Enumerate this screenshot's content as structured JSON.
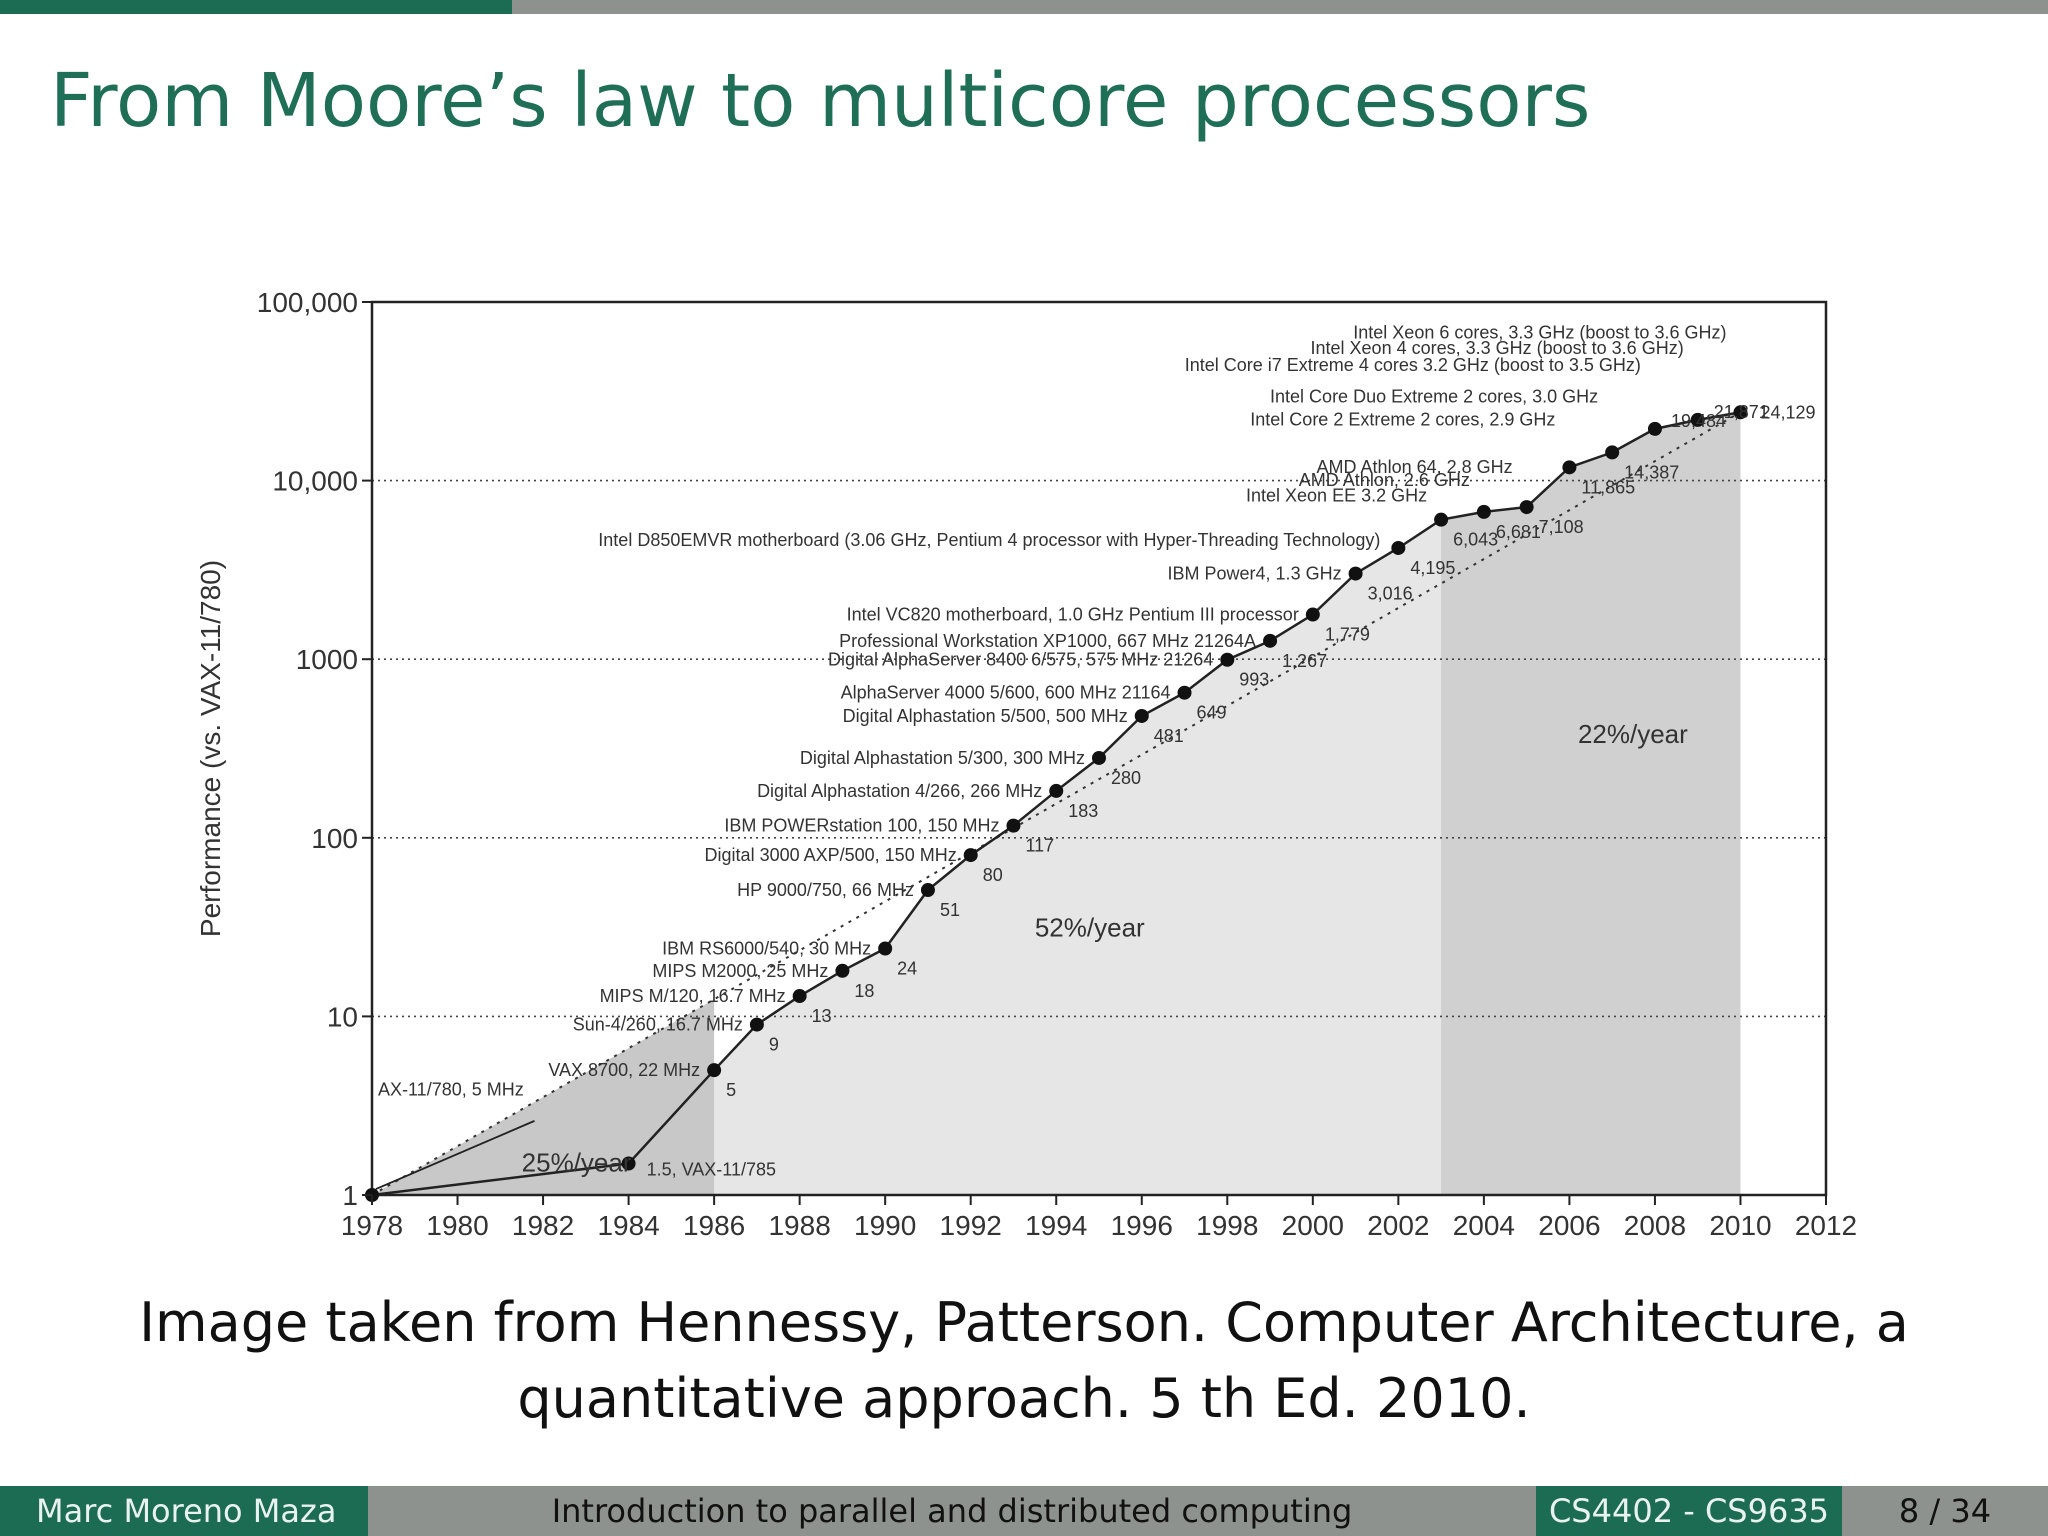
{
  "slide": {
    "title": "From Moore’s law to multicore processors",
    "caption_line1": "Image taken from Hennessy, Patterson. Computer Architecture, a",
    "caption_line2": "quantitative approach. 5 th Ed. 2010."
  },
  "footer": {
    "author": "Marc Moreno Maza",
    "course": "Introduction to parallel and distributed computing",
    "code": "CS4402 - CS9635",
    "page": "8 / 34"
  },
  "colors": {
    "accent": "#1c6b53",
    "footer_gray": "#8e928e",
    "title_green": "#1e6f55"
  },
  "chart_data": {
    "type": "line",
    "ylabel": "Performance (vs. VAX-11/780)",
    "xlabel": "",
    "y_scale": "log",
    "xlim": [
      1978,
      2012
    ],
    "ylim": [
      1,
      100000
    ],
    "x_ticks": [
      "1978",
      "1980",
      "1982",
      "1984",
      "1986",
      "1988",
      "1990",
      "1992",
      "1994",
      "1996",
      "1998",
      "2000",
      "2002",
      "2004",
      "2006",
      "2008",
      "2010",
      "2012"
    ],
    "y_ticks": [
      {
        "value": 1,
        "label": "1"
      },
      {
        "value": 10,
        "label": "10"
      },
      {
        "value": 100,
        "label": "100"
      },
      {
        "value": 1000,
        "label": "1000"
      },
      {
        "value": 10000,
        "label": "10,000"
      },
      {
        "value": 100000,
        "label": "100,000"
      }
    ],
    "grid": "horizontal dotted",
    "points": [
      {
        "year": 1978,
        "value": 1,
        "value_label": "1",
        "name": "AX-11/780, 5 MHz"
      },
      {
        "year": 1984,
        "value": 1.5,
        "value_label": "1.5, VAX-11/785",
        "name": ""
      },
      {
        "year": 1986,
        "value": 5,
        "value_label": "5",
        "name": "VAX 8700, 22 MHz"
      },
      {
        "year": 1987,
        "value": 9,
        "value_label": "9",
        "name": "Sun-4/260, 16.7 MHz"
      },
      {
        "year": 1988,
        "value": 13,
        "value_label": "13",
        "name": "MIPS M/120, 16.7 MHz"
      },
      {
        "year": 1989,
        "value": 18,
        "value_label": "18",
        "name": "MIPS M2000, 25 MHz"
      },
      {
        "year": 1990,
        "value": 24,
        "value_label": "24",
        "name": "IBM RS6000/540, 30 MHz"
      },
      {
        "year": 1991,
        "value": 51,
        "value_label": "51",
        "name": "HP 9000/750, 66 MHz"
      },
      {
        "year": 1992,
        "value": 80,
        "value_label": "80",
        "name": "Digital 3000 AXP/500, 150 MHz"
      },
      {
        "year": 1993,
        "value": 117,
        "value_label": "117",
        "name": "IBM POWERstation 100, 150 MHz"
      },
      {
        "year": 1994,
        "value": 183,
        "value_label": "183",
        "name": "Digital Alphastation 4/266, 266 MHz"
      },
      {
        "year": 1995,
        "value": 280,
        "value_label": "280",
        "name": "Digital Alphastation 5/300, 300 MHz"
      },
      {
        "year": 1996,
        "value": 481,
        "value_label": "481",
        "name": "Digital Alphastation 5/500, 500 MHz"
      },
      {
        "year": 1997,
        "value": 649,
        "value_label": "649",
        "name": "AlphaServer 4000 5/600, 600 MHz 21164"
      },
      {
        "year": 1998,
        "value": 993,
        "value_label": "993",
        "name": "Digital AlphaServer 8400 6/575, 575 MHz 21264"
      },
      {
        "year": 1999,
        "value": 1267,
        "value_label": "1,267",
        "name": "Professional Workstation XP1000, 667 MHz 21264A"
      },
      {
        "year": 2000,
        "value": 1779,
        "value_label": "1,779",
        "name": "Intel VC820 motherboard, 1.0 GHz Pentium III processor"
      },
      {
        "year": 2001,
        "value": 3016,
        "value_label": "3,016",
        "name": "IBM Power4, 1.3 GHz"
      },
      {
        "year": 2002,
        "value": 4195,
        "value_label": "4,195",
        "name": "Intel D850EMVR motherboard (3.06 GHz, Pentium 4 processor with Hyper-Threading Technology)"
      },
      {
        "year": 2003,
        "value": 6043,
        "value_label": "6,043",
        "name": "Intel Xeon EE 3.2 GHz"
      },
      {
        "year": 2004,
        "value": 6681,
        "value_label": "6,681",
        "name": "AMD Athlon, 2.6 GHz"
      },
      {
        "year": 2005,
        "value": 7108,
        "value_label": "7,108",
        "name": "AMD Athlon 64, 2.8 GHz"
      },
      {
        "year": 2006,
        "value": 11865,
        "value_label": "11,865",
        "name": "Intel Core 2 Extreme 2 cores, 2.9 GHz"
      },
      {
        "year": 2007,
        "value": 14387,
        "value_label": "14,387",
        "name": "Intel Core Duo Extreme 2 cores, 3.0 GHz"
      },
      {
        "year": 2008,
        "value": 19484,
        "value_label": "19,484",
        "name": "Intel Core i7 Extreme 4 cores 3.2 GHz (boost to 3.5 GHz)"
      },
      {
        "year": 2009,
        "value": 21871,
        "value_label": "21,871",
        "name": "Intel Xeon 4 cores, 3.3 GHz (boost to 3.6 GHz)"
      },
      {
        "year": 2010,
        "value": 24129,
        "value_label": "24,129",
        "name": "Intel Xeon 6 cores, 3.3 GHz (boost to 3.6 GHz)"
      }
    ],
    "regions": [
      {
        "label": "25%/year",
        "from": 1978,
        "to": 1986,
        "shade": "#c8c8c8"
      },
      {
        "label": "52%/year",
        "from": 1986,
        "to": 2003,
        "shade": "#e6e6e6"
      },
      {
        "label": "22%/year",
        "from": 2003,
        "to": 2010,
        "shade": "#d0d0d0"
      }
    ]
  }
}
